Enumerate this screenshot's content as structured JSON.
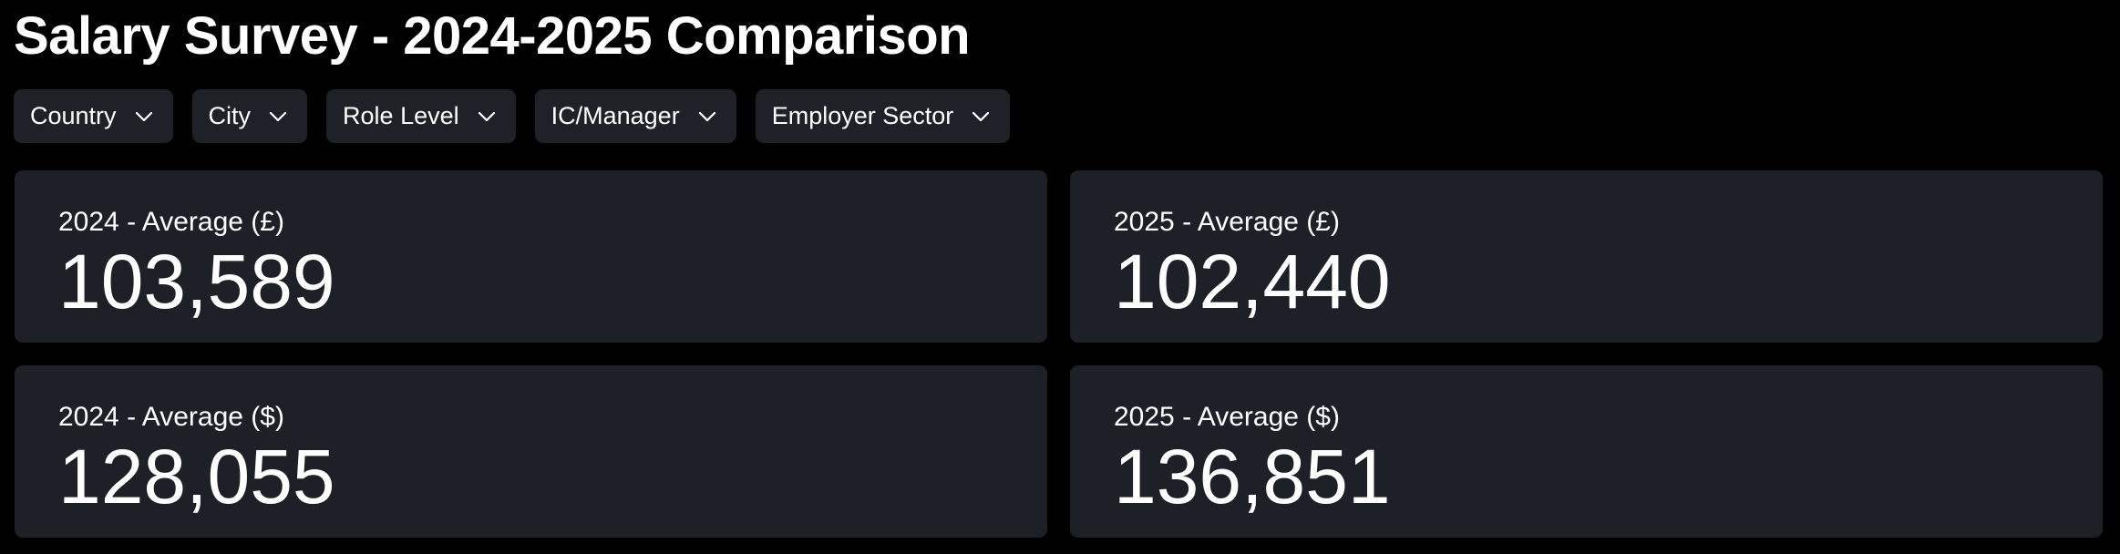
{
  "header": {
    "title": "Salary Survey - 2024-2025 Comparison"
  },
  "filters": [
    "Country",
    "City",
    "Role Level",
    "IC/Manager",
    "Employer Sector"
  ],
  "cards": [
    {
      "label": "2024 - Average (£)",
      "value": "103,589"
    },
    {
      "label": "2025 - Average (£)",
      "value": "102,440"
    },
    {
      "label": "2024 - Average ($)",
      "value": "128,055"
    },
    {
      "label": "2025 - Average ($)",
      "value": "136,851"
    }
  ]
}
